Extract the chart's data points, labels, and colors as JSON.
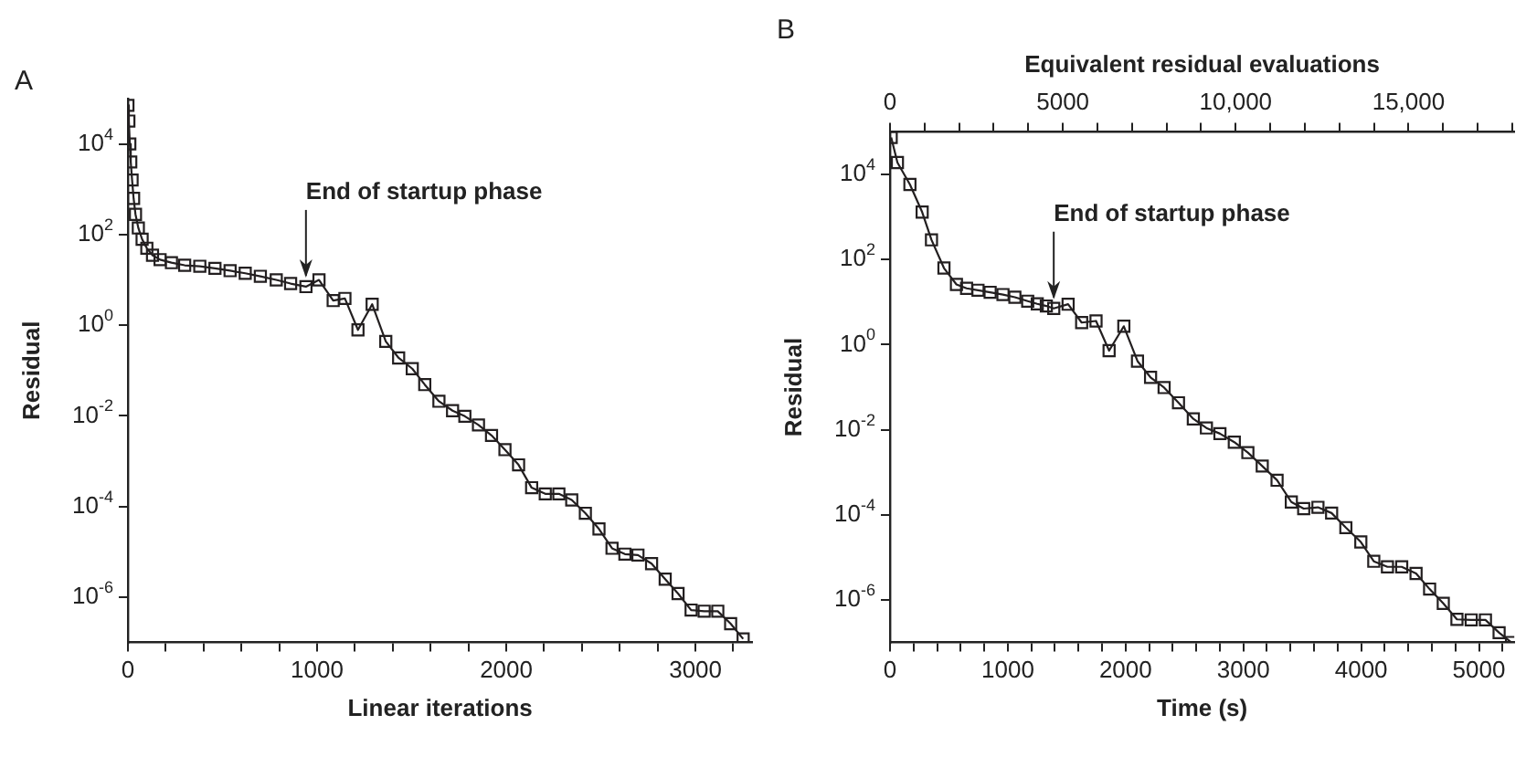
{
  "chart_data": [
    {
      "type": "line",
      "title": "A",
      "xlabel": "Linear iterations",
      "ylabel": "Residual",
      "color": "#231f20",
      "marker": "square",
      "line_style": "solid",
      "grid": false,
      "legend": false,
      "log": "y",
      "x": [
        0,
        5,
        10,
        15,
        22,
        30,
        40,
        55,
        75,
        100,
        130,
        170,
        230,
        300,
        380,
        460,
        540,
        620,
        700,
        784,
        860,
        941,
        1010,
        1085,
        1147,
        1216,
        1291,
        1363,
        1431,
        1503,
        1569,
        1644,
        1716,
        1781,
        1853,
        1922,
        1993,
        2065,
        2134,
        2206,
        2278,
        2346,
        2418,
        2490,
        2559,
        2627,
        2696,
        2768,
        2840,
        2908,
        2977,
        3046,
        3118,
        3186,
        3252
      ],
      "values": [
        71000,
        32000,
        10000,
        4000,
        1600,
        630,
        280,
        140,
        79,
        50,
        35,
        28,
        24,
        21,
        20,
        18,
        16,
        14,
        12,
        10,
        8.3,
        7.1,
        10,
        3.5,
        3.9,
        0.79,
        2.9,
        0.44,
        0.19,
        0.11,
        0.049,
        0.021,
        0.013,
        0.0098,
        0.0063,
        0.0037,
        0.0018,
        0.00083,
        0.00026,
        0.00019,
        0.00019,
        0.00014,
        7.1e-05,
        3.2e-05,
        1.2e-05,
        8.9e-06,
        8.5e-06,
        5.5e-06,
        2.5e-06,
        1.2e-06,
        5.2e-07,
        4.9e-07,
        4.9e-07,
        2.6e-07,
        1.2e-07
      ],
      "xlim": [
        0,
        3300
      ],
      "xticks": [
        0,
        {
          "value": 200,
          "label": null
        },
        {
          "value": 400,
          "label": null
        },
        {
          "value": 600,
          "label": null
        },
        {
          "value": 800,
          "label": null
        },
        1000,
        {
          "value": 1200,
          "label": null
        },
        {
          "value": 1400,
          "label": null
        },
        {
          "value": 1600,
          "label": null
        },
        {
          "value": 1800,
          "label": null
        },
        2000,
        {
          "value": 2200,
          "label": null
        },
        {
          "value": 2400,
          "label": null
        },
        {
          "value": 2600,
          "label": null
        },
        {
          "value": 2800,
          "label": null
        },
        3000,
        {
          "value": 3200,
          "label": null
        }
      ],
      "ylim": [
        1e-07,
        100000
      ],
      "yticks": [
        {
          "value": 10000,
          "label": "10$^{4}$"
        },
        {
          "value": 100,
          "label": "10$^{2}$"
        },
        {
          "value": 1,
          "label": "10$^{0}$"
        },
        {
          "value": 0.01,
          "label": "10$^{-2}$"
        },
        {
          "value": 0.0001,
          "label": "10$^{-4}$"
        },
        {
          "value": 1e-06,
          "label": "10$^{-6}$"
        }
      ],
      "annotations": [
        {
          "text": "End of startup phase",
          "x": 941,
          "y": 7.1
        }
      ]
    },
    {
      "type": "line",
      "title": "B",
      "xlabel": "Time (s)",
      "ylabel": "Residual",
      "x2label": "Equivalent residual evaluations",
      "color": "#231f20",
      "marker": "square",
      "line_style": "solid",
      "grid": false,
      "legend": false,
      "log": "y",
      "x": [
        10,
        63,
        169,
        273,
        352,
        458,
        564,
        650,
        747,
        850,
        959,
        1060,
        1169,
        1250,
        1327,
        1390,
        1512,
        1627,
        1749,
        1860,
        1985,
        2101,
        2212,
        2327,
        2449,
        2575,
        2686,
        2801,
        2923,
        3038,
        3160,
        3286,
        3407,
        3512,
        3633,
        3749,
        3870,
        3997,
        4107,
        4223,
        4344,
        4466,
        4581,
        4697,
        4813,
        4934,
        5055,
        5171,
        5276
      ],
      "values": [
        74000,
        19000,
        5800,
        1300,
        290,
        63,
        26,
        21,
        19,
        17,
        15,
        13,
        10.5,
        9.1,
        8.1,
        7.1,
        8.9,
        3.3,
        3.6,
        0.72,
        2.7,
        0.41,
        0.17,
        0.098,
        0.043,
        0.018,
        0.011,
        0.0081,
        0.0051,
        0.0029,
        0.0014,
        0.00065,
        0.0002,
        0.00014,
        0.00015,
        0.00011,
        5e-05,
        2.3e-05,
        8.1e-06,
        6e-06,
        6e-06,
        4.2e-06,
        1.8e-06,
        8.3e-07,
        3.5e-07,
        3.4e-07,
        3.4e-07,
        1.7e-07,
        1e-07
      ],
      "xlim": [
        0,
        5300
      ],
      "xticks": [
        0,
        {
          "value": 200,
          "label": null
        },
        {
          "value": 400,
          "label": null
        },
        {
          "value": 600,
          "label": null
        },
        {
          "value": 800,
          "label": null
        },
        1000,
        {
          "value": 1200,
          "label": null
        },
        {
          "value": 1400,
          "label": null
        },
        {
          "value": 1600,
          "label": null
        },
        {
          "value": 1800,
          "label": null
        },
        2000,
        {
          "value": 2200,
          "label": null
        },
        {
          "value": 2400,
          "label": null
        },
        {
          "value": 2600,
          "label": null
        },
        {
          "value": 2800,
          "label": null
        },
        3000,
        {
          "value": 3200,
          "label": null
        },
        {
          "value": 3400,
          "label": null
        },
        {
          "value": 3600,
          "label": null
        },
        {
          "value": 3800,
          "label": null
        },
        4000,
        {
          "value": 4200,
          "label": null
        },
        {
          "value": 4400,
          "label": null
        },
        {
          "value": 4600,
          "label": null
        },
        {
          "value": 4800,
          "label": null
        },
        5000,
        {
          "value": 5200,
          "label": null
        }
      ],
      "x2lim": [
        0,
        18060
      ],
      "x2ticks": [
        0,
        {
          "value": 1000,
          "label": null
        },
        {
          "value": 2000,
          "label": null
        },
        {
          "value": 3000,
          "label": null
        },
        {
          "value": 4000,
          "label": null
        },
        5000,
        {
          "value": 6000,
          "label": null
        },
        {
          "value": 7000,
          "label": null
        },
        {
          "value": 8000,
          "label": null
        },
        {
          "value": 9000,
          "label": null
        },
        {
          "value": 10000,
          "label": "10,000"
        },
        {
          "value": 11000,
          "label": null
        },
        {
          "value": 12000,
          "label": null
        },
        {
          "value": 13000,
          "label": null
        },
        {
          "value": 14000,
          "label": null
        },
        {
          "value": 15000,
          "label": "15,000"
        },
        {
          "value": 16000,
          "label": null
        },
        {
          "value": 17000,
          "label": null
        },
        {
          "value": 18000,
          "label": null
        }
      ],
      "ylim": [
        1e-07,
        100000
      ],
      "yticks": [
        {
          "value": 10000,
          "label": "10$^{4}$"
        },
        {
          "value": 100,
          "label": "10$^{2}$"
        },
        {
          "value": 1,
          "label": "10$^{0}$"
        },
        {
          "value": 0.01,
          "label": "10$^{-2}$"
        },
        {
          "value": 0.0001,
          "label": "10$^{-4}$"
        },
        {
          "value": 1e-06,
          "label": "10$^{-6}$"
        }
      ],
      "annotations": [
        {
          "text": "End of startup phase",
          "x": 1390,
          "y": 7.1
        }
      ]
    }
  ]
}
